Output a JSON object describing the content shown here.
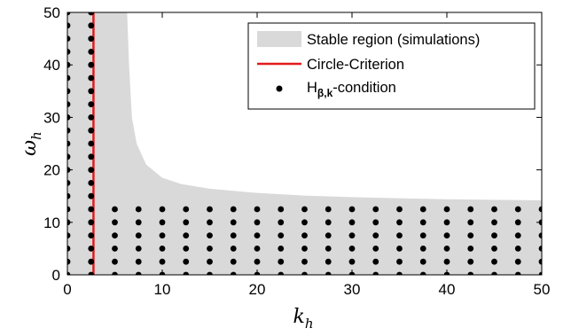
{
  "chart_data": {
    "type": "scatter",
    "xlabel": "k",
    "xlabel_sub": "h",
    "ylabel": "ω",
    "ylabel_sub": "h",
    "xlim": [
      0,
      50
    ],
    "ylim": [
      0,
      50
    ],
    "xticks": [
      0,
      10,
      20,
      30,
      40,
      50
    ],
    "yticks": [
      0,
      10,
      20,
      30,
      40,
      50
    ],
    "grid": false,
    "legend_position": "top-right",
    "colors": {
      "stable": "#d9d9d9",
      "circle": "#e41a1c",
      "points": "#000000"
    },
    "series": [
      {
        "name": "Stable region (simulations)",
        "kind": "area",
        "boundary": [
          [
            0,
            0
          ],
          [
            0,
            50
          ],
          [
            6.3,
            50
          ],
          [
            6.5,
            40
          ],
          [
            6.8,
            30
          ],
          [
            7.3,
            25
          ],
          [
            8.3,
            21
          ],
          [
            10,
            18.5
          ],
          [
            12,
            17.3
          ],
          [
            15,
            16.4
          ],
          [
            20,
            15.6
          ],
          [
            25,
            15.1
          ],
          [
            30,
            14.8
          ],
          [
            35,
            14.6
          ],
          [
            40,
            14.4
          ],
          [
            45,
            14.3
          ],
          [
            50,
            14.2
          ],
          [
            50,
            0
          ]
        ]
      },
      {
        "name": "Circle-Criterion",
        "kind": "line",
        "x": [
          2.75,
          2.75
        ],
        "y": [
          0,
          50
        ]
      },
      {
        "name": "H",
        "name_sub": "β,k",
        "name_suffix": "-condition",
        "kind": "scatter",
        "groups": [
          {
            "x_values": [
              0,
              2.5
            ],
            "y_from": 0,
            "y_to": 50,
            "y_step": 2.5
          },
          {
            "x_values": [
              5,
              7.5,
              10,
              12.5,
              15,
              17.5,
              20,
              22.5,
              25,
              27.5,
              30,
              32.5,
              35,
              37.5,
              40,
              42.5,
              45,
              47.5,
              50
            ],
            "y_from": 0,
            "y_to": 12.5,
            "y_step": 2.5
          }
        ]
      }
    ]
  }
}
